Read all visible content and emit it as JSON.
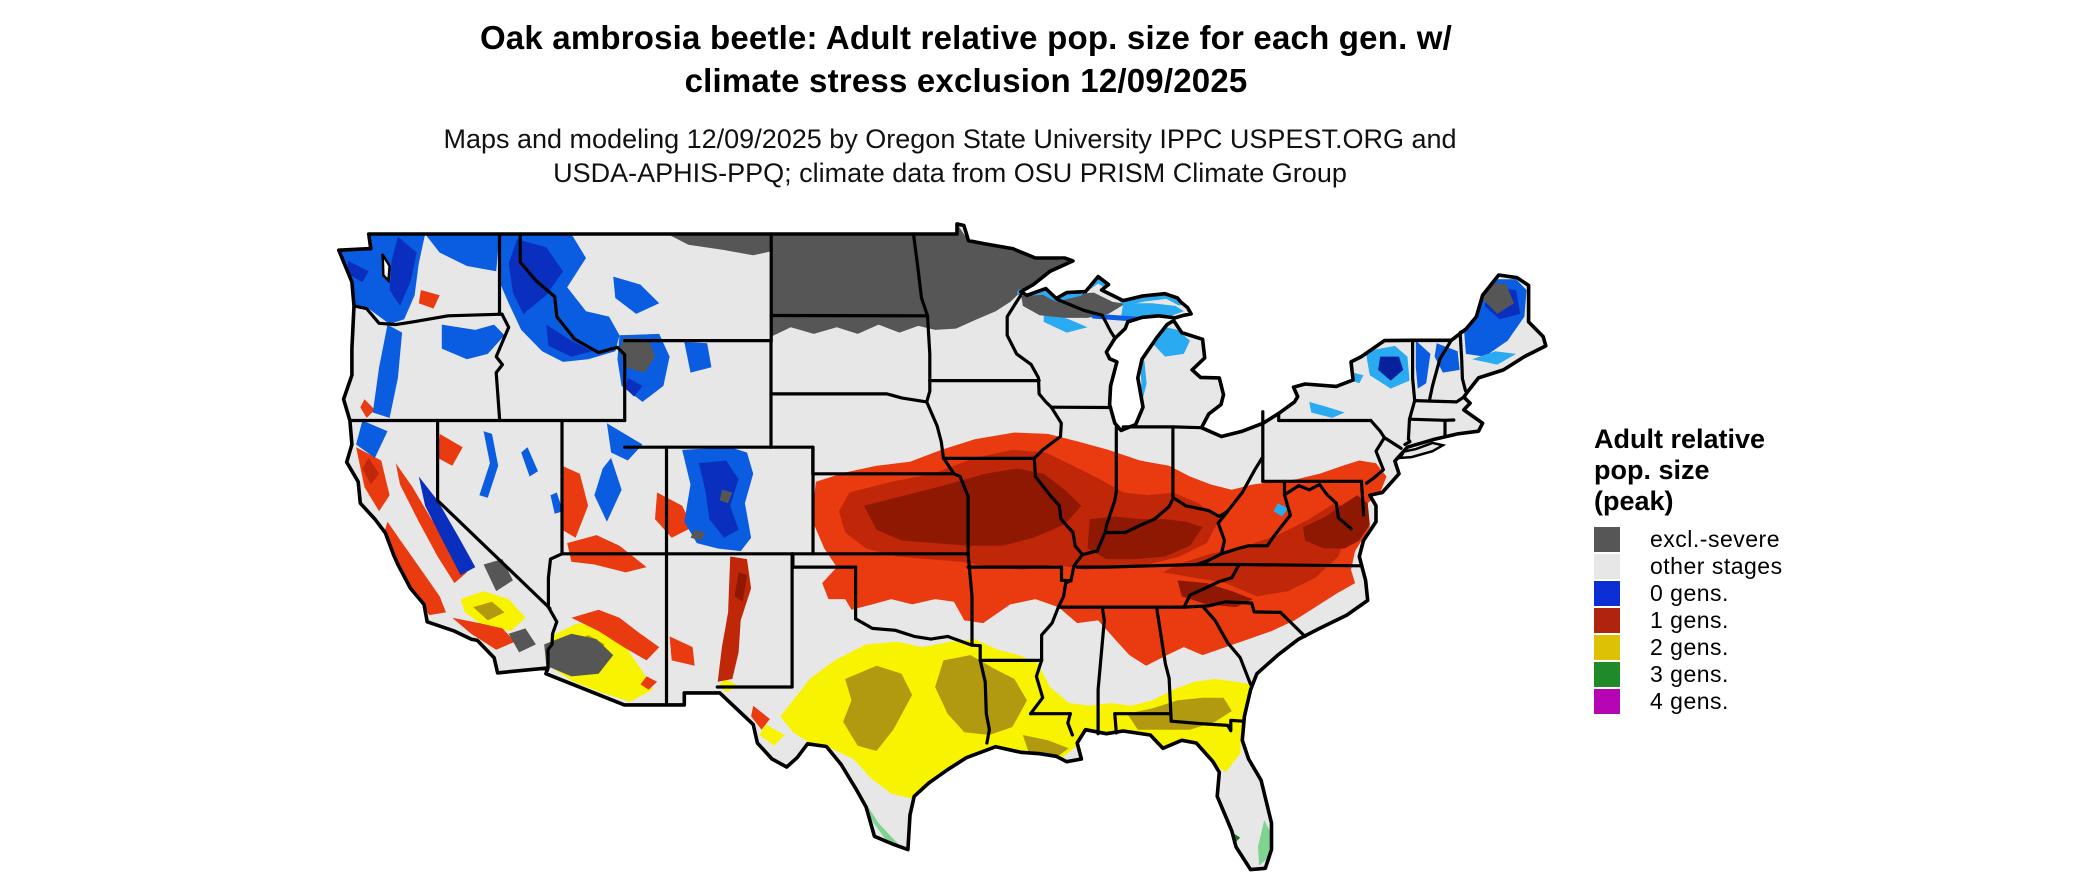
{
  "title": {
    "line1": "Oak ambrosia beetle: Adult relative pop. size for each gen. w/",
    "line2": "climate stress exclusion 12/09/2025"
  },
  "subtitle": {
    "line1": "Maps and modeling 12/09/2025 by Oregon State University IPPC USPEST.ORG and",
    "line2": "USDA-APHIS-PPQ; climate data from OSU PRISM Climate Group"
  },
  "legend": {
    "title_lines": [
      "Adult relative",
      "pop. size",
      "(peak)"
    ],
    "items": [
      {
        "label": "excl.-severe",
        "color": "#565656"
      },
      {
        "label": "other stages",
        "color": "#e7e7e7"
      },
      {
        "label": "0 gens.",
        "color": "#0b2fd4"
      },
      {
        "label": "1 gens.",
        "color": "#b0240f"
      },
      {
        "label": "2 gens.",
        "color": "#ddc104"
      },
      {
        "label": "3 gens.",
        "color": "#1e8b28"
      },
      {
        "label": "4 gens.",
        "color": "#b505b5"
      }
    ]
  },
  "map": {
    "region_label": "Contiguous United States",
    "palette": {
      "other": "#e7e7e7",
      "excl": "#565656",
      "g0_light": "#2aaaf0",
      "g0": "#0a5ce0",
      "g0_dark": "#0a2fbe",
      "g0_navy": "#07209b",
      "g1_bright": "#ea3b10",
      "g1": "#c02709",
      "g1_dark": "#8f1803",
      "g2_bright": "#f8f400",
      "g2": "#ddc104",
      "g2_olive": "#b29a10",
      "g3_light": "#7fd492",
      "g3": "#1e8b28",
      "g3_dark": "#0f7a1e",
      "g4": "#b505b5",
      "border": "#000000",
      "water": "#ffffff"
    }
  }
}
